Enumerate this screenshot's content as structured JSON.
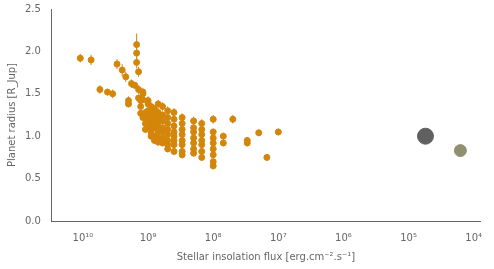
{
  "chart_data": {
    "type": "scatter",
    "xlabel": "Stellar insolation flux [erg.cm⁻².s⁻¹]",
    "ylabel": "Planet radius [R_Jup]",
    "log": "x",
    "grid": false,
    "xlim": [
      30000000000.0,
      8000.0
    ],
    "xticks": [
      {
        "value": 10000000000.0,
        "label": "10¹⁰"
      },
      {
        "value": 1000000000.0,
        "label": "10⁹"
      },
      {
        "value": 100000000.0,
        "label": "10⁸"
      },
      {
        "value": 10000000.0,
        "label": "10⁷"
      },
      {
        "value": 1000000.0,
        "label": "10⁶"
      },
      {
        "value": 100000.0,
        "label": "10⁵"
      },
      {
        "value": 10000.0,
        "label": "10⁴"
      }
    ],
    "ylim": [
      0.0,
      2.5
    ],
    "yticks": [
      {
        "value": 0.0,
        "label": "0.0"
      },
      0.5,
      {
        "value": 1.0,
        "label": "1.0"
      },
      1.5,
      {
        "value": 2.0,
        "label": "2.0"
      },
      2.5
    ],
    "series": [
      {
        "color": "#D4860A",
        "marker": "circle",
        "x": [
          11000000000.0,
          7500000000.0,
          5500000000.0,
          4200000000.0,
          3500000000.0,
          3000000000.0,
          2500000000.0,
          2200000000.0,
          2000000000.0,
          2000000000.0,
          1800000000.0,
          1600000000.0,
          1500000000.0,
          1500000000.0,
          1500000000.0,
          1400000000.0,
          1400000000.0,
          1400000000.0,
          1300000000.0,
          1300000000.0,
          1300000000.0,
          1200000000.0,
          1200000000.0,
          1200000000.0,
          1200000000.0,
          1100000000.0,
          1100000000.0,
          1100000000.0,
          1000000000.0,
          1000000000.0,
          1000000000.0,
          1000000000.0,
          1000000000.0,
          1000000000.0,
          900000000.0,
          900000000.0,
          900000000.0,
          900000000.0,
          900000000.0,
          900000000.0,
          900000000.0,
          800000000.0,
          800000000.0,
          800000000.0,
          800000000.0,
          800000000.0,
          800000000.0,
          800000000.0,
          700000000.0,
          700000000.0,
          700000000.0,
          700000000.0,
          700000000.0,
          700000000.0,
          700000000.0,
          700000000.0,
          600000000.0,
          600000000.0,
          600000000.0,
          600000000.0,
          600000000.0,
          600000000.0,
          600000000.0,
          500000000.0,
          500000000.0,
          500000000.0,
          500000000.0,
          500000000.0,
          500000000.0,
          500000000.0,
          500000000.0,
          400000000.0,
          400000000.0,
          400000000.0,
          400000000.0,
          400000000.0,
          400000000.0,
          400000000.0,
          400000000.0,
          300000000.0,
          300000000.0,
          300000000.0,
          300000000.0,
          300000000.0,
          300000000.0,
          300000000.0,
          300000000.0,
          200000000.0,
          200000000.0,
          200000000.0,
          200000000.0,
          200000000.0,
          200000000.0,
          200000000.0,
          150000000.0,
          150000000.0,
          150000000.0,
          150000000.0,
          150000000.0,
          150000000.0,
          150000000.0,
          100000000.0,
          100000000.0,
          100000000.0,
          100000000.0,
          100000000.0,
          100000000.0,
          100000000.0,
          100000000.0,
          70000000.0,
          70000000.0,
          50000000.0,
          30000000.0,
          30000000.0,
          20000000.0,
          15000000.0,
          10000000.0
        ],
        "values": [
          1.92,
          1.9,
          1.55,
          1.52,
          1.5,
          1.85,
          1.78,
          1.7,
          1.42,
          1.38,
          1.62,
          1.6,
          2.08,
          1.98,
          1.87,
          1.76,
          1.55,
          1.45,
          1.42,
          1.35,
          1.27,
          1.52,
          1.5,
          1.43,
          1.22,
          1.28,
          1.15,
          1.08,
          1.42,
          1.38,
          1.3,
          1.25,
          1.2,
          1.12,
          1.35,
          1.28,
          1.22,
          1.15,
          1.1,
          1.05,
          1.0,
          1.32,
          1.25,
          1.2,
          1.15,
          1.1,
          1.0,
          0.95,
          1.38,
          1.28,
          1.22,
          1.18,
          1.12,
          1.05,
          0.98,
          0.93,
          1.35,
          1.25,
          1.18,
          1.1,
          1.05,
          0.98,
          0.92,
          1.3,
          1.22,
          1.15,
          1.08,
          1.02,
          0.95,
          0.9,
          0.85,
          1.28,
          1.2,
          1.12,
          1.05,
          1.0,
          0.95,
          0.9,
          0.82,
          1.22,
          1.15,
          1.08,
          1.02,
          0.95,
          0.9,
          0.82,
          0.78,
          1.18,
          1.1,
          1.05,
          0.98,
          0.92,
          0.85,
          0.8,
          1.15,
          1.08,
          1.02,
          0.95,
          0.9,
          0.82,
          0.75,
          1.2,
          1.05,
          0.98,
          0.92,
          0.85,
          0.78,
          0.7,
          0.65,
          1.0,
          0.92,
          1.2,
          0.95,
          0.92,
          1.04,
          0.75,
          1.05
        ],
        "yerr": [
          0.05,
          0.06,
          0.05,
          0.04,
          0.05,
          0.06,
          0.07,
          0.06,
          0.05,
          0.04,
          0.05,
          0.04,
          0.13,
          0.08,
          0.07,
          0.06,
          0.05,
          0.04,
          0.04,
          0.05,
          0.04,
          0.05,
          0.04,
          0.04,
          0.04,
          0.04,
          0.04,
          0.04,
          0.05,
          0.04,
          0.04,
          0.04,
          0.04,
          0.04,
          0.05,
          0.04,
          0.04,
          0.04,
          0.04,
          0.04,
          0.04,
          0.05,
          0.04,
          0.04,
          0.04,
          0.04,
          0.04,
          0.04,
          0.05,
          0.05,
          0.04,
          0.04,
          0.04,
          0.04,
          0.04,
          0.04,
          0.05,
          0.04,
          0.04,
          0.04,
          0.04,
          0.04,
          0.04,
          0.05,
          0.04,
          0.04,
          0.04,
          0.04,
          0.04,
          0.04,
          0.04,
          0.05,
          0.04,
          0.04,
          0.04,
          0.04,
          0.04,
          0.04,
          0.04,
          0.05,
          0.04,
          0.04,
          0.04,
          0.04,
          0.04,
          0.04,
          0.04,
          0.05,
          0.04,
          0.04,
          0.04,
          0.04,
          0.04,
          0.04,
          0.05,
          0.04,
          0.04,
          0.04,
          0.04,
          0.04,
          0.04,
          0.05,
          0.04,
          0.04,
          0.04,
          0.04,
          0.04,
          0.04,
          0.04,
          0.04,
          0.04,
          0.05,
          0.04,
          0.04,
          0.04,
          0.04,
          0.04
        ]
      },
      {
        "color": "#606060",
        "marker": "circle",
        "x": [
          55000.0
        ],
        "values": [
          1.0
        ]
      },
      {
        "color": "#909070",
        "marker": "circle",
        "x": [
          16000.0
        ],
        "values": [
          0.83
        ]
      }
    ]
  }
}
